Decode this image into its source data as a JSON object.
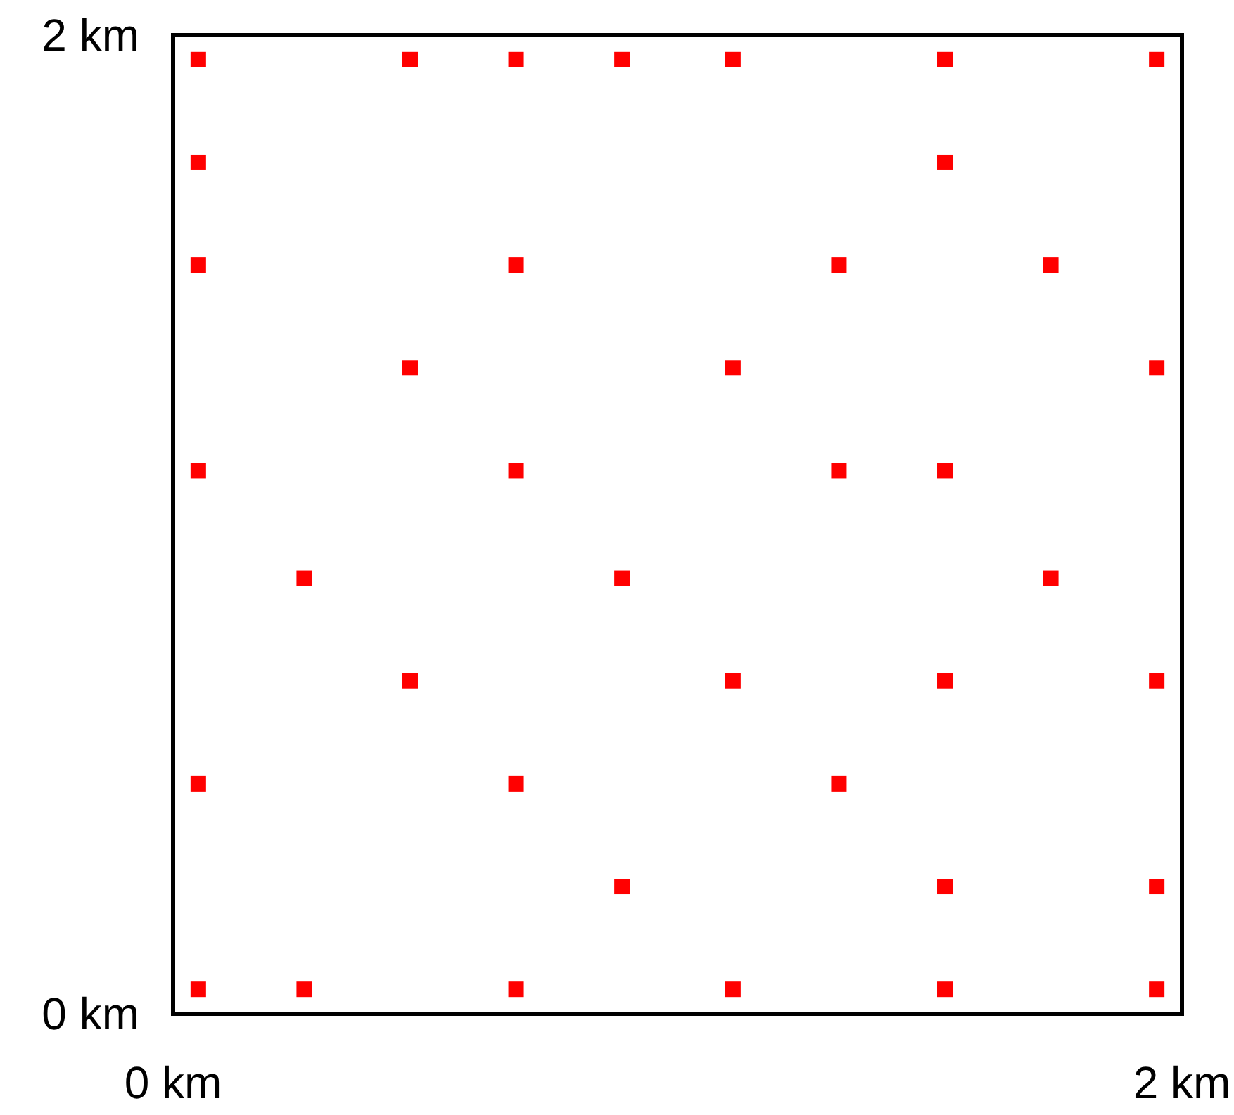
{
  "chart_data": {
    "type": "scatter",
    "marker": "square",
    "x": [
      0.05,
      0.47,
      0.68,
      0.89,
      1.11,
      1.53,
      1.95,
      0.05,
      1.53,
      0.05,
      0.68,
      1.32,
      1.74,
      0.47,
      1.11,
      1.95,
      0.05,
      0.68,
      1.32,
      1.53,
      0.26,
      0.89,
      1.74,
      0.47,
      1.11,
      1.53,
      1.95,
      0.05,
      0.68,
      1.32,
      0.89,
      1.53,
      1.95,
      0.05,
      0.26,
      0.68,
      1.11,
      1.53,
      1.95
    ],
    "series": [
      {
        "color": "#ff0000",
        "values": [
          1.95,
          1.95,
          1.95,
          1.95,
          1.95,
          1.95,
          1.95,
          1.74,
          1.74,
          1.53,
          1.53,
          1.53,
          1.53,
          1.32,
          1.32,
          1.32,
          1.11,
          1.11,
          1.11,
          1.11,
          0.89,
          0.89,
          0.89,
          0.68,
          0.68,
          0.68,
          0.68,
          0.47,
          0.47,
          0.47,
          0.26,
          0.26,
          0.26,
          0.05,
          0.05,
          0.05,
          0.05,
          0.05,
          0.05
        ]
      }
    ],
    "xlim": [
      0,
      2
    ],
    "ylim": [
      0,
      2
    ],
    "xticks": [
      {
        "value": 0,
        "label": "0 km"
      },
      {
        "value": 2,
        "label": "2 km"
      }
    ],
    "yticks": [
      {
        "value": 0,
        "label": "0 km"
      },
      {
        "value": 2,
        "label": "2 km"
      }
    ]
  }
}
